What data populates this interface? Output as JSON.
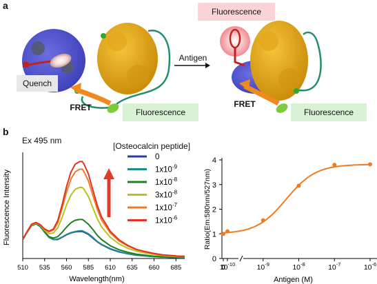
{
  "panel_a": {
    "label": "a",
    "left": {
      "quench_label": "Quench",
      "fret_label": "FRET",
      "fluorescence_label": "Fluorescence"
    },
    "arrow_label": "Antigen",
    "right": {
      "top_fluorescence_label": "Fluorescence",
      "fret_label": "FRET",
      "fluorescence_label": "Fluorescence"
    }
  },
  "panel_b": {
    "label": "b",
    "excitation_label": "Ex 495 nm",
    "legend_title": "[Osteocalcin peptide]",
    "legend": [
      {
        "label": "0",
        "color": "#2b3aa8"
      },
      {
        "label": "1x10",
        "exp": "-9",
        "color": "#1f8a8a"
      },
      {
        "label": "1x10",
        "exp": "-8",
        "color": "#1d7f1d"
      },
      {
        "label": "3x10",
        "exp": "-8",
        "color": "#b9c21a"
      },
      {
        "label": "1x10",
        "exp": "-7",
        "color": "#f07a22"
      },
      {
        "label": "1x10",
        "exp": "-6",
        "color": "#e23322"
      }
    ],
    "arrow_color": "#e03a2a"
  },
  "chart_data": [
    {
      "type": "line",
      "xlabel": "Wavelength(nm)",
      "ylabel": "Fluorescence Intensity",
      "xlim": [
        510,
        695
      ],
      "x_ticks": [
        510,
        535,
        560,
        585,
        610,
        635,
        660,
        685
      ],
      "x": [
        510,
        515,
        520,
        525,
        530,
        535,
        540,
        545,
        550,
        555,
        560,
        565,
        570,
        575,
        578,
        580,
        585,
        590,
        595,
        600,
        610,
        620,
        630,
        640,
        650,
        660,
        670,
        680,
        690,
        695
      ],
      "series": [
        {
          "name": "0",
          "color": "#2b3aa8",
          "values": [
            0.52,
            0.72,
            0.9,
            0.95,
            0.88,
            0.72,
            0.58,
            0.52,
            0.52,
            0.58,
            0.65,
            0.7,
            0.73,
            0.74,
            0.74,
            0.72,
            0.66,
            0.56,
            0.46,
            0.38,
            0.26,
            0.18,
            0.13,
            0.09,
            0.07,
            0.05,
            0.04,
            0.03,
            0.02,
            0.02
          ]
        },
        {
          "name": "1x10^-9",
          "color": "#1f8a8a",
          "values": [
            0.52,
            0.72,
            0.9,
            0.95,
            0.88,
            0.72,
            0.58,
            0.52,
            0.53,
            0.59,
            0.66,
            0.71,
            0.74,
            0.76,
            0.76,
            0.74,
            0.68,
            0.58,
            0.47,
            0.39,
            0.27,
            0.19,
            0.13,
            0.09,
            0.07,
            0.05,
            0.04,
            0.03,
            0.02,
            0.02
          ]
        },
        {
          "name": "1x10^-8",
          "color": "#1d7f1d",
          "values": [
            0.52,
            0.73,
            0.91,
            0.96,
            0.89,
            0.73,
            0.6,
            0.56,
            0.6,
            0.72,
            0.86,
            0.98,
            1.05,
            1.07,
            1.07,
            1.04,
            0.94,
            0.8,
            0.64,
            0.52,
            0.35,
            0.24,
            0.17,
            0.12,
            0.09,
            0.06,
            0.05,
            0.04,
            0.03,
            0.03
          ]
        },
        {
          "name": "3x10^-8",
          "color": "#b9c21a",
          "values": [
            0.53,
            0.73,
            0.92,
            0.97,
            0.91,
            0.77,
            0.68,
            0.7,
            0.84,
            1.13,
            1.47,
            1.74,
            1.9,
            1.95,
            1.95,
            1.9,
            1.7,
            1.4,
            1.1,
            0.87,
            0.58,
            0.4,
            0.28,
            0.2,
            0.15,
            0.11,
            0.08,
            0.06,
            0.05,
            0.05
          ]
        },
        {
          "name": "1x10^-7",
          "color": "#f07a22",
          "values": [
            0.53,
            0.74,
            0.93,
            0.98,
            0.92,
            0.8,
            0.73,
            0.78,
            0.98,
            1.38,
            1.82,
            2.18,
            2.38,
            2.45,
            2.45,
            2.38,
            2.13,
            1.74,
            1.36,
            1.06,
            0.7,
            0.48,
            0.34,
            0.24,
            0.18,
            0.13,
            0.1,
            0.08,
            0.06,
            0.06
          ]
        },
        {
          "name": "1x10^-6",
          "color": "#e23322",
          "values": [
            0.53,
            0.74,
            0.94,
            0.99,
            0.93,
            0.81,
            0.75,
            0.81,
            1.04,
            1.48,
            1.97,
            2.37,
            2.59,
            2.66,
            2.66,
            2.59,
            2.32,
            1.89,
            1.47,
            1.14,
            0.75,
            0.51,
            0.36,
            0.25,
            0.19,
            0.14,
            0.1,
            0.08,
            0.06,
            0.06
          ]
        }
      ],
      "ylim": [
        0,
        2.8
      ],
      "grid": false
    },
    {
      "type": "scatter",
      "xlabel": "Antigen (M)",
      "ylabel": "Ratio(Em:580nm/527nm)",
      "x_ticks": [
        "0",
        "10^-10",
        "10^-9",
        "10^-8",
        "10^-7",
        "10^-6"
      ],
      "ylim": [
        0,
        4
      ],
      "y_ticks": [
        0,
        1,
        2,
        3,
        4
      ],
      "log_x_range": [
        -10,
        -6
      ],
      "x_log": [
        -10,
        -9,
        -8,
        -7,
        -6
      ],
      "values": [
        1.1,
        1.55,
        2.95,
        3.8,
        3.82
      ],
      "zero_value": 1.0,
      "fit_color": "#f07a22",
      "grid": false
    }
  ]
}
